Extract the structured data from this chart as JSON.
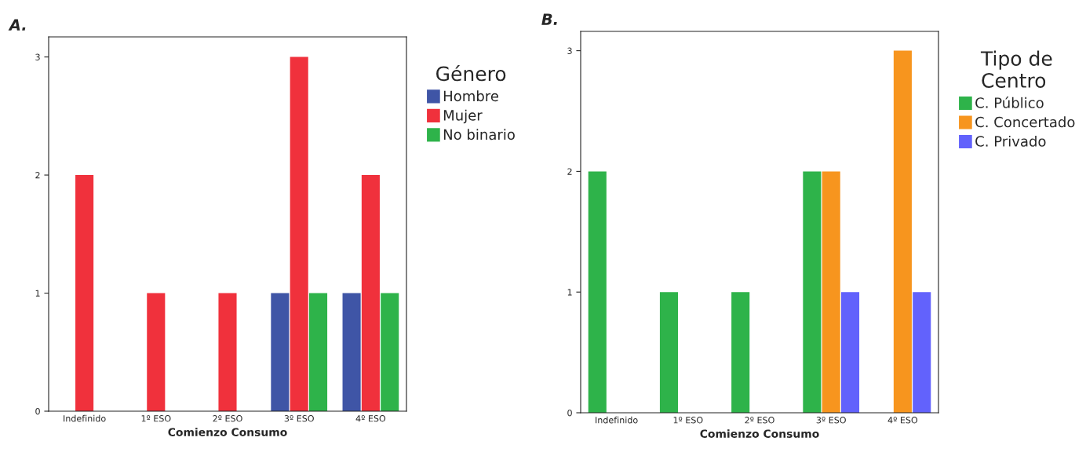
{
  "chart_data": [
    {
      "type": "bar",
      "title": "A.",
      "xlabel": "Comienzo Consumo",
      "legend_title": "Género",
      "legend": "right",
      "grid": false,
      "categories": [
        "Indefinido",
        "1º ESO",
        "2º ESO",
        "3º ESO",
        "4º ESO"
      ],
      "ylim": [
        0,
        3.17
      ],
      "yticks": [
        0,
        1,
        2,
        3
      ],
      "series": [
        {
          "name": "Hombre",
          "color": "#3f55a6",
          "values": [
            null,
            null,
            null,
            1,
            1
          ]
        },
        {
          "name": "Mujer",
          "color": "#f0313c",
          "values": [
            2,
            1,
            1,
            3,
            2
          ]
        },
        {
          "name": "No binario",
          "color": "#2eb34a",
          "values": [
            null,
            null,
            null,
            1,
            1
          ]
        }
      ]
    },
    {
      "type": "bar",
      "title": "B.",
      "xlabel": "Comienzo Consumo",
      "legend_title": "Tipo de\nCentro",
      "legend": "right",
      "grid": false,
      "categories": [
        "Indefinido",
        "1º ESO",
        "2º ESO",
        "3º ESO",
        "4º ESO"
      ],
      "ylim": [
        0,
        3.16
      ],
      "yticks": [
        0,
        1,
        2,
        3
      ],
      "series": [
        {
          "name": "C. Público",
          "color": "#2eb34a",
          "values": [
            2,
            1,
            1,
            2,
            null
          ]
        },
        {
          "name": "C. Concertado",
          "color": "#f7951e",
          "values": [
            null,
            null,
            null,
            2,
            3
          ]
        },
        {
          "name": "C. Privado",
          "color": "#6262fc",
          "values": [
            null,
            null,
            null,
            1,
            1
          ]
        }
      ]
    }
  ]
}
